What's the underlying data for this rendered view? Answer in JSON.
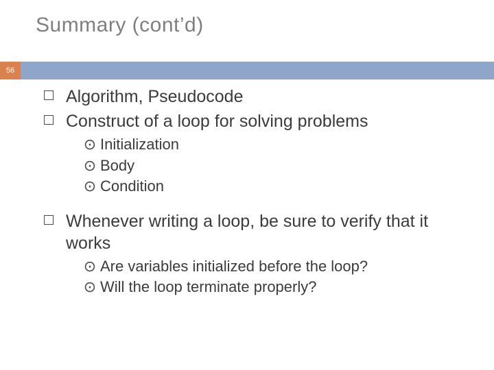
{
  "slide": {
    "title": "Summary (cont’d)",
    "page_number": "56",
    "colors": {
      "title_color": "#7f7f7f",
      "badge_bg": "#d9824f",
      "bar_bg": "#8fa5c9",
      "text_color": "#3b3b3b",
      "level2_marker": "⊙"
    },
    "bullets": {
      "b0": "Algorithm, Pseudocode",
      "b1": "Construct of a loop for solving problems",
      "b1_sub0": "Initialization",
      "b1_sub1": "Body",
      "b1_sub2": "Condition",
      "b2": "Whenever writing a loop, be sure to verify that it works",
      "b2_sub0": "Are variables initialized before the loop?",
      "b2_sub1": "Will the loop terminate properly?"
    }
  }
}
